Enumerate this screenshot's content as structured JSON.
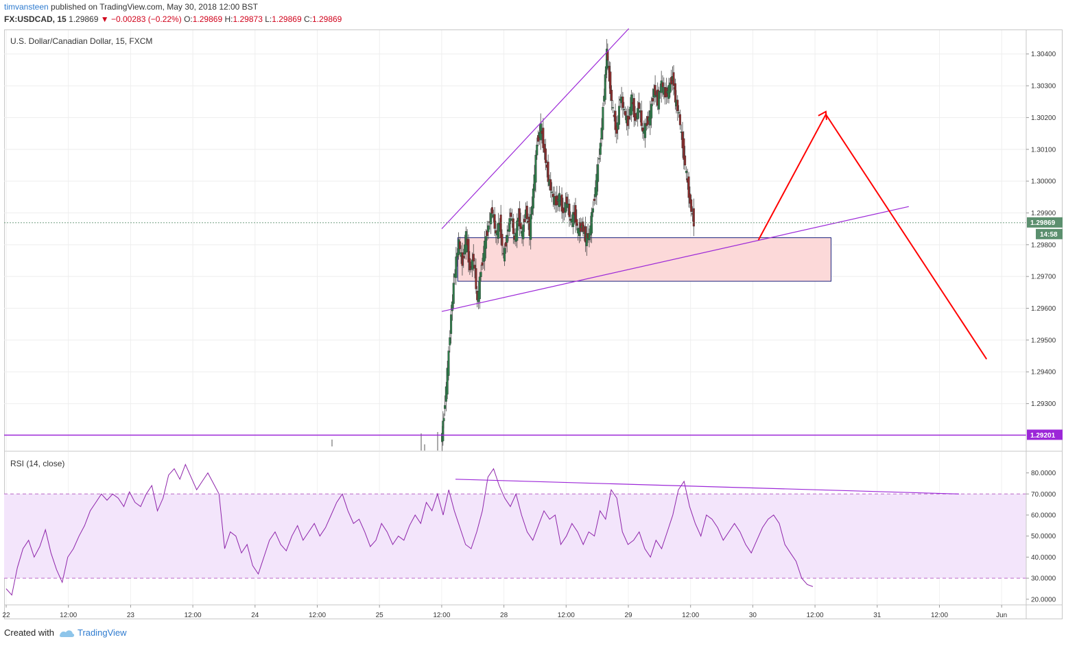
{
  "header": {
    "author": "timvansteen",
    "published": "published on TradingView.com, May 30, 2018 12:00 BST",
    "symbol": "FX:USDCAD, 15",
    "last": "1.29869",
    "change": "▼ −0.00283 (−0.22%)",
    "o_label": "O:",
    "o": "1.29869",
    "h_label": "H:",
    "h": "1.29873",
    "l_label": "L:",
    "l": "1.29869",
    "c_label": "C:",
    "c": "1.29869"
  },
  "footer": {
    "created_with": "Created with",
    "brand": "TradingView"
  },
  "chart_data": [
    {
      "type": "candlestick",
      "title": "U.S. Dollar/Canadian Dollar, 15, FXCM",
      "ylim": [
        1.2919,
        1.3049
      ],
      "y_ticks": [
        "1.30400",
        "1.30300",
        "1.30200",
        "1.30100",
        "1.30000",
        "1.29900",
        "1.29800",
        "1.29700",
        "1.29600",
        "1.29500",
        "1.29400",
        "1.29300"
      ],
      "y_tick_values": [
        1.304,
        1.303,
        1.302,
        1.301,
        1.3,
        1.299,
        1.298,
        1.297,
        1.296,
        1.295,
        1.294,
        1.293
      ],
      "x_ticks": [
        "22",
        "12:00",
        "23",
        "12:00",
        "24",
        "12:00",
        "25",
        "12:00",
        "28",
        "12:00",
        "29",
        "12:00",
        "30",
        "12:00",
        "31",
        "12:00",
        "Jun"
      ],
      "last_price_label": "1.29869",
      "last_price": 1.29869,
      "countdown_label": "14:58",
      "support_level_label": "1.29201",
      "support_level": 1.29201,
      "price_path": [
        [
          0.0,
          1.2918
        ],
        [
          0.02,
          1.2926
        ],
        [
          0.05,
          1.294
        ],
        [
          0.08,
          1.2958
        ],
        [
          0.11,
          1.2972
        ],
        [
          0.14,
          1.2981
        ],
        [
          0.17,
          1.2974
        ],
        [
          0.2,
          1.2983
        ],
        [
          0.23,
          1.2972
        ],
        [
          0.26,
          1.2976
        ],
        [
          0.29,
          1.2962
        ],
        [
          0.32,
          1.2972
        ],
        [
          0.35,
          1.298
        ],
        [
          0.38,
          1.2986
        ],
        [
          0.41,
          1.2991
        ],
        [
          0.44,
          1.2983
        ],
        [
          0.47,
          1.2987
        ],
        [
          0.5,
          1.2976
        ],
        [
          0.53,
          1.2983
        ],
        [
          0.56,
          1.299
        ],
        [
          0.59,
          1.2981
        ],
        [
          0.62,
          1.2989
        ],
        [
          0.65,
          1.2983
        ],
        [
          0.68,
          1.2991
        ],
        [
          0.71,
          1.2984
        ],
        [
          0.74,
          1.2997
        ],
        [
          0.77,
          1.3012
        ],
        [
          0.8,
          1.3017
        ],
        [
          0.83,
          1.3009
        ],
        [
          0.86,
          1.3001
        ],
        [
          0.89,
          1.2996
        ],
        [
          0.92,
          1.2993
        ],
        [
          0.95,
          1.2995
        ],
        [
          0.98,
          1.299
        ],
        [
          1.01,
          1.2994
        ],
        [
          1.04,
          1.2987
        ],
        [
          1.07,
          1.299
        ],
        [
          1.1,
          1.2984
        ],
        [
          1.13,
          1.2986
        ],
        [
          1.16,
          1.2982
        ],
        [
          1.19,
          1.2983
        ],
        [
          1.22,
          1.2992
        ],
        [
          1.25,
          1.3001
        ],
        [
          1.28,
          1.3012
        ],
        [
          1.31,
          1.3028
        ],
        [
          1.33,
          1.3041
        ],
        [
          1.35,
          1.3032
        ],
        [
          1.38,
          1.3022
        ],
        [
          1.41,
          1.3015
        ],
        [
          1.44,
          1.3027
        ],
        [
          1.47,
          1.3022
        ],
        [
          1.5,
          1.3018
        ],
        [
          1.53,
          1.3026
        ],
        [
          1.56,
          1.3019
        ],
        [
          1.59,
          1.3024
        ],
        [
          1.62,
          1.3015
        ],
        [
          1.65,
          1.3018
        ],
        [
          1.68,
          1.3021
        ],
        [
          1.71,
          1.3029
        ],
        [
          1.74,
          1.3025
        ],
        [
          1.77,
          1.3031
        ],
        [
          1.8,
          1.3027
        ],
        [
          1.83,
          1.3029
        ],
        [
          1.86,
          1.3033
        ],
        [
          1.88,
          1.3026
        ],
        [
          1.91,
          1.3021
        ],
        [
          1.94,
          1.3011
        ],
        [
          1.97,
          1.3002
        ],
        [
          2.0,
          1.2993
        ],
        [
          2.03,
          1.2987
        ]
      ],
      "price_path_x_start": "May 25 12:00",
      "price_path_x_unit": "trading days",
      "trend_lines": [
        {
          "name": "upper wedge",
          "from": [
            "May 25 12:00",
            1.2985
          ],
          "to": [
            "May 29 12:00",
            1.3048
          ]
        },
        {
          "name": "lower wedge",
          "from": [
            "May 25 12:00",
            1.2959
          ],
          "to": [
            "May 31 18:00",
            1.2992
          ]
        }
      ],
      "zone": {
        "from_time": "May 28 03:00",
        "to_time": "May 31 03:00",
        "top": 1.29822,
        "bottom": 1.29685
      },
      "projection": {
        "points": [
          [
            "May 30 13:00",
            1.29815
          ],
          [
            "May 31 02:00",
            1.3021
          ],
          [
            "Jun 1 09:00",
            1.2944
          ]
        ]
      },
      "colors": {
        "up": "#2e7d4a",
        "down": "#8b2c2c",
        "trend": "#9c27d8",
        "zone_fill": "#fcd9d9",
        "zone_border": "#1a237e",
        "projection": "#ff0000",
        "price_badge": "#5b8f6e",
        "level_badge": "#9c27d8"
      }
    },
    {
      "type": "line",
      "title": "RSI (14, close)",
      "ylim": [
        17,
        90
      ],
      "y_ticks": [
        "80.0000",
        "70.0000",
        "60.0000",
        "50.0000",
        "40.0000",
        "30.0000",
        "20.0000"
      ],
      "y_tick_values": [
        80,
        70,
        60,
        50,
        40,
        30,
        20
      ],
      "band": [
        30,
        70
      ],
      "values": [
        25,
        22,
        35,
        44,
        48,
        40,
        45,
        53,
        42,
        34,
        28,
        40,
        44,
        50,
        55,
        62,
        66,
        70,
        67,
        70,
        68,
        64,
        71,
        66,
        64,
        70,
        74,
        62,
        68,
        79,
        82,
        77,
        84,
        78,
        72,
        76,
        80,
        75,
        70,
        44,
        52,
        50,
        42,
        46,
        36,
        32,
        40,
        48,
        52,
        46,
        43,
        50,
        55,
        48,
        52,
        56,
        50,
        54,
        60,
        66,
        70,
        62,
        56,
        58,
        52,
        45,
        48,
        56,
        52,
        46,
        50,
        48,
        55,
        60,
        56,
        66,
        62,
        70,
        60,
        72,
        62,
        54,
        46,
        44,
        52,
        62,
        78,
        82,
        74,
        68,
        64,
        70,
        60,
        52,
        48,
        55,
        62,
        58,
        60,
        46,
        50,
        56,
        52,
        46,
        52,
        50,
        62,
        58,
        72,
        68,
        52,
        46,
        48,
        52,
        44,
        40,
        48,
        44,
        52,
        60,
        72,
        76,
        64,
        56,
        50,
        60,
        58,
        54,
        48,
        52,
        56,
        52,
        46,
        42,
        48,
        54,
        58,
        60,
        56,
        46,
        42,
        38,
        30,
        27,
        26
      ],
      "divergence_line": {
        "from": [
          "May 25 12:00",
          77
        ],
        "to": [
          "May 31 12:00",
          70
        ]
      },
      "colors": {
        "line": "#8e24aa",
        "band_fill": "#f3e5fb",
        "band_border": "#ba68c8",
        "divergence": "#9c27d8"
      }
    }
  ]
}
